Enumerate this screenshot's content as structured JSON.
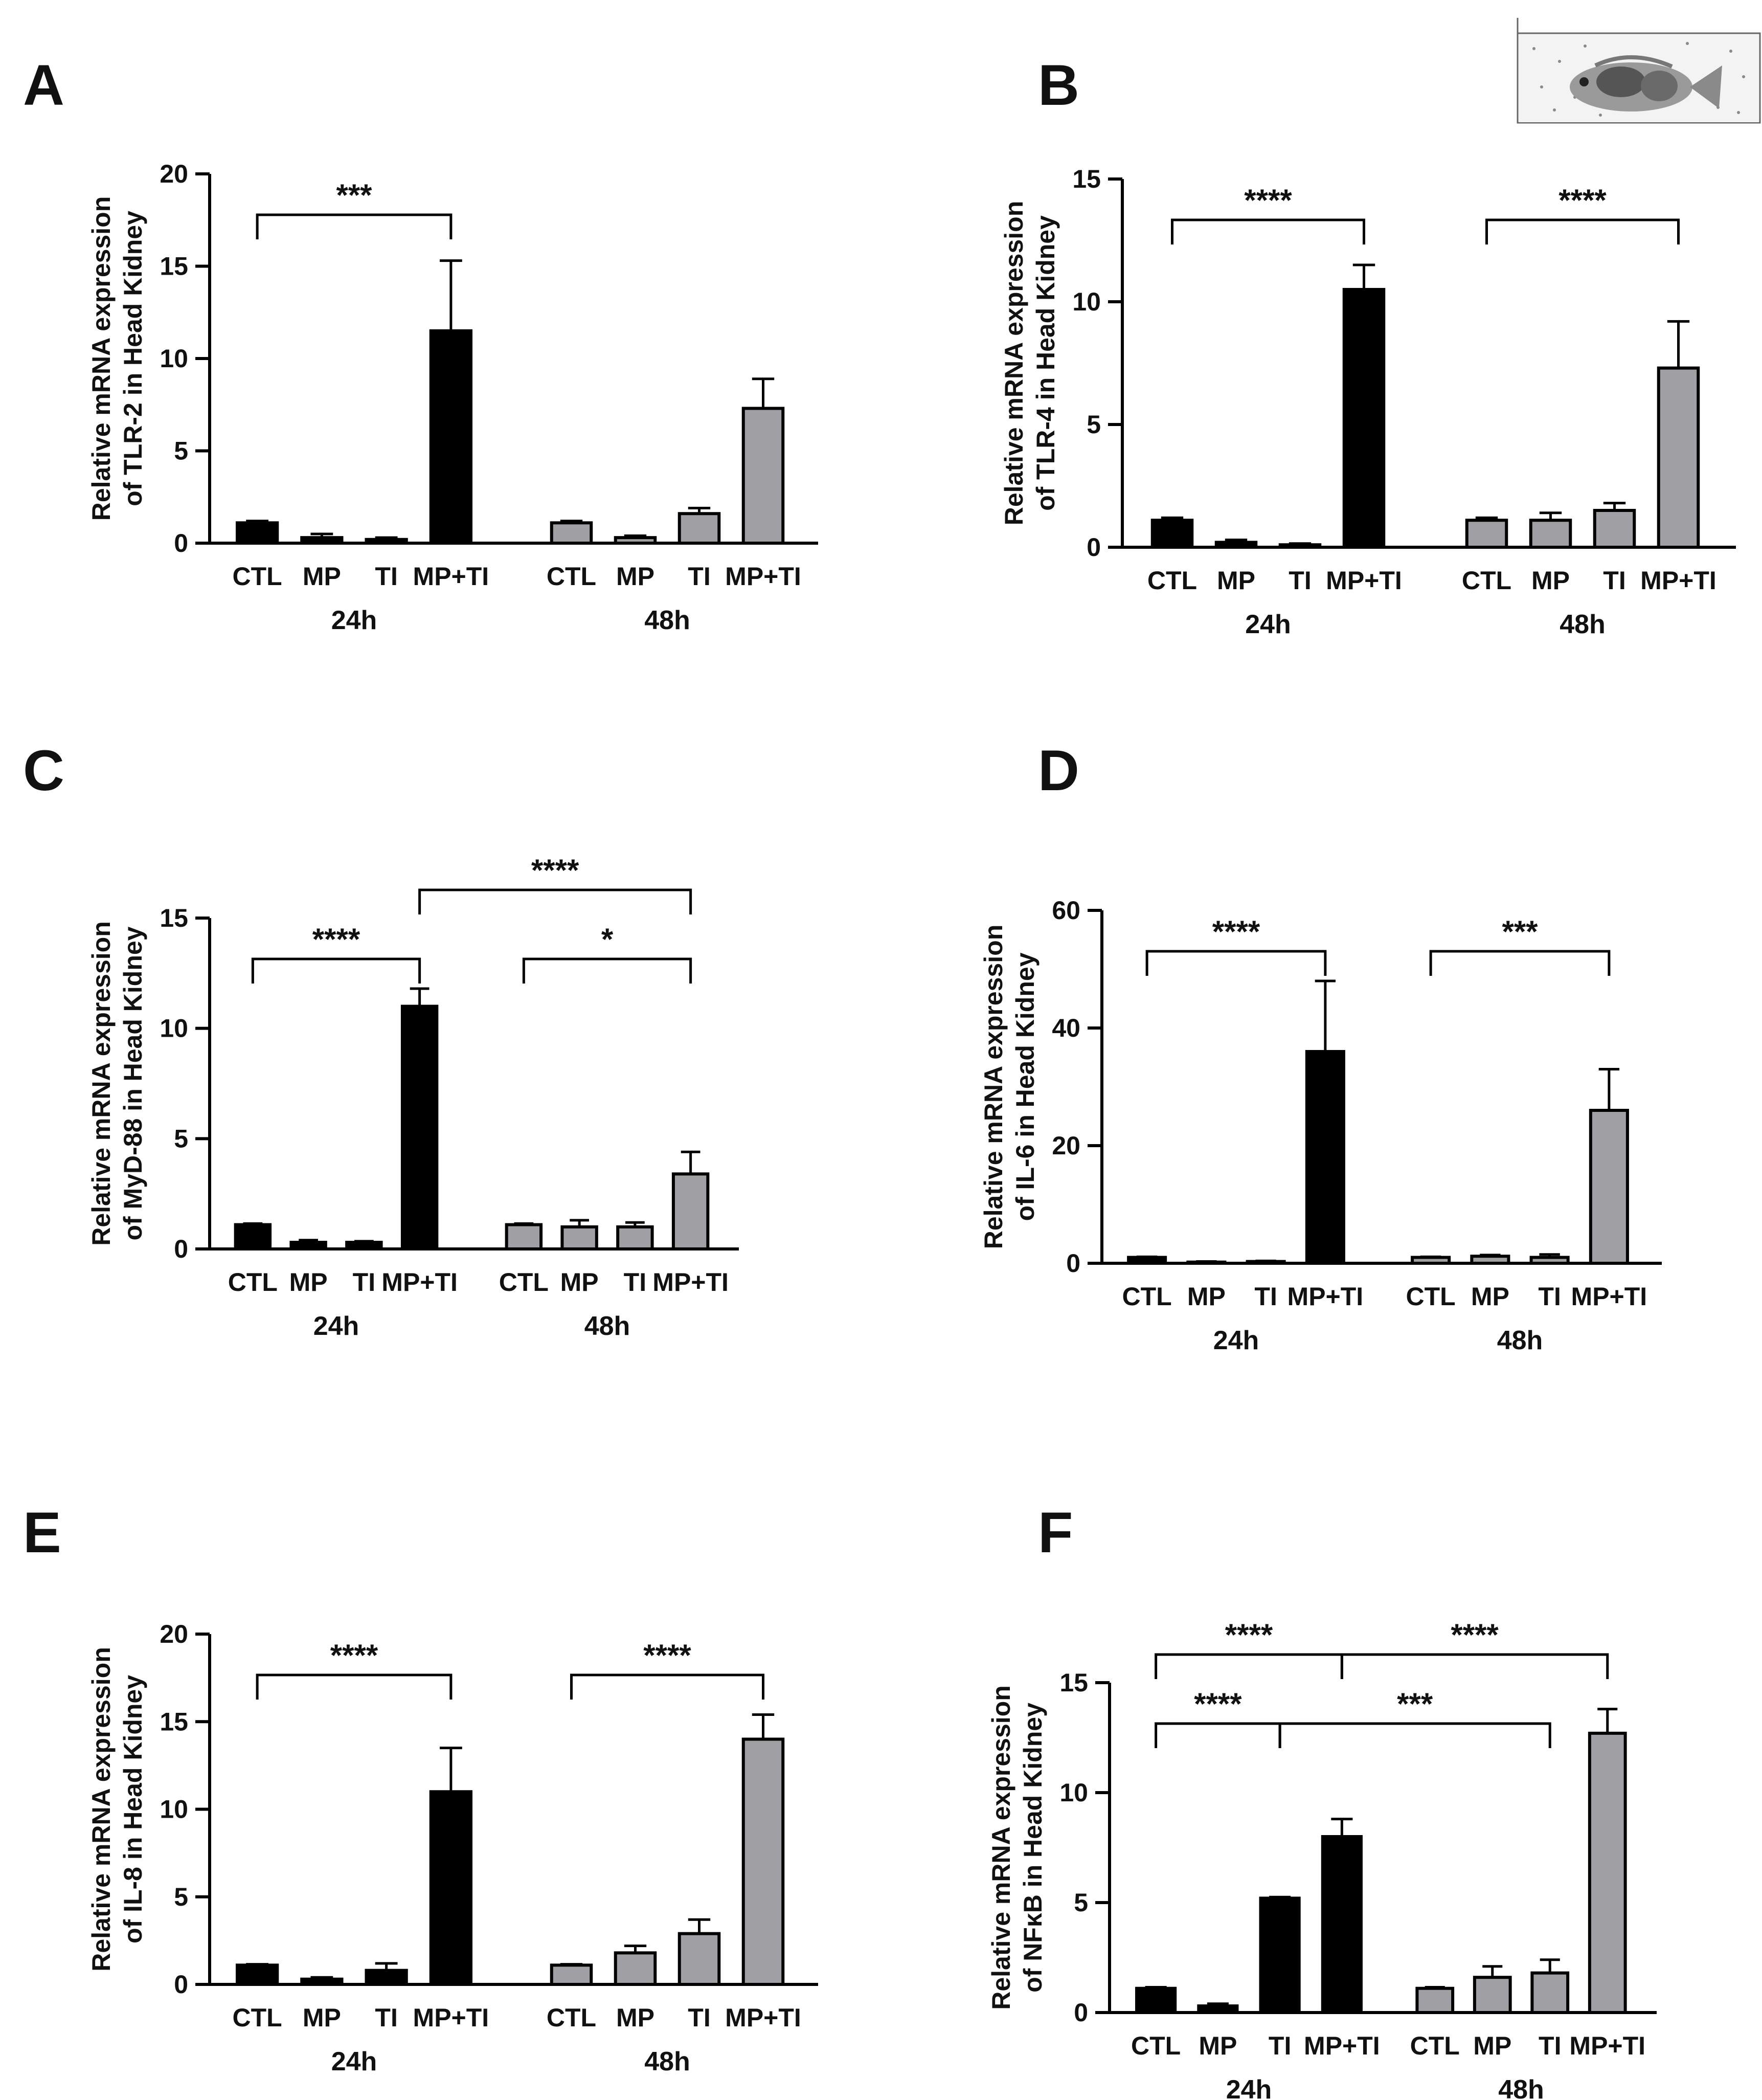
{
  "figure": {
    "palette": {
      "h24": "#000000",
      "h48": "#a0a0a4",
      "outline": "#000000"
    },
    "inset_icon": "fish-illustration-icon"
  },
  "chart_data": [
    {
      "panel": "A",
      "type": "bar",
      "ylabel_lines": [
        "Relative mRNA expression",
        "of TLR-2 in Head Kidney"
      ],
      "ylim": [
        0,
        20
      ],
      "yticks": [
        0,
        5,
        10,
        15,
        20
      ],
      "categories": [
        "CTL",
        "MP",
        "TI",
        "MP+TI"
      ],
      "groups": [
        "24h",
        "48h"
      ],
      "series": [
        {
          "name": "24h",
          "values": [
            1.1,
            0.3,
            0.2,
            11.5
          ],
          "errors": [
            0.1,
            0.2,
            0.1,
            3.8
          ]
        },
        {
          "name": "48h",
          "values": [
            1.1,
            0.3,
            1.6,
            7.3
          ],
          "errors": [
            0.1,
            0.1,
            0.3,
            1.6
          ]
        }
      ],
      "significance": [
        {
          "label": "***",
          "from": [
            0,
            0
          ],
          "to": [
            0,
            3
          ],
          "tier": 0
        }
      ]
    },
    {
      "panel": "B",
      "type": "bar",
      "ylabel_lines": [
        "Relative mRNA expression",
        "of TLR-4 in Head Kidney"
      ],
      "ylim": [
        0,
        15
      ],
      "yticks": [
        0,
        5,
        10,
        15
      ],
      "categories": [
        "CTL",
        "MP",
        "TI",
        "MP+TI"
      ],
      "groups": [
        "24h",
        "48h"
      ],
      "series": [
        {
          "name": "24h",
          "values": [
            1.1,
            0.2,
            0.1,
            10.5
          ],
          "errors": [
            0.1,
            0.1,
            0.05,
            1.0
          ]
        },
        {
          "name": "48h",
          "values": [
            1.1,
            1.1,
            1.5,
            7.3
          ],
          "errors": [
            0.1,
            0.3,
            0.3,
            1.9
          ]
        }
      ],
      "significance": [
        {
          "label": "****",
          "from": [
            0,
            0
          ],
          "to": [
            0,
            3
          ],
          "tier": 0
        },
        {
          "label": "****",
          "from": [
            1,
            0
          ],
          "to": [
            1,
            3
          ],
          "tier": 0
        }
      ]
    },
    {
      "panel": "C",
      "type": "bar",
      "ylabel_lines": [
        "Relative mRNA expression",
        "of MyD-88 in Head Kidney"
      ],
      "ylim": [
        0,
        15
      ],
      "yticks": [
        0,
        5,
        10,
        15
      ],
      "categories": [
        "CTL",
        "MP",
        "TI",
        "MP+TI"
      ],
      "groups": [
        "24h",
        "48h"
      ],
      "series": [
        {
          "name": "24h",
          "values": [
            1.1,
            0.3,
            0.3,
            11.0
          ],
          "errors": [
            0.05,
            0.1,
            0.05,
            0.8
          ]
        },
        {
          "name": "48h",
          "values": [
            1.1,
            1.0,
            1.0,
            3.4
          ],
          "errors": [
            0.05,
            0.3,
            0.2,
            1.0
          ]
        }
      ],
      "significance": [
        {
          "label": "****",
          "from": [
            0,
            0
          ],
          "to": [
            0,
            3
          ],
          "tier": 0
        },
        {
          "label": "*",
          "from": [
            1,
            0
          ],
          "to": [
            1,
            3
          ],
          "tier": 0
        },
        {
          "label": "****",
          "from": [
            0,
            3
          ],
          "to": [
            1,
            3
          ],
          "tier": 1
        }
      ]
    },
    {
      "panel": "D",
      "type": "bar",
      "ylabel_lines": [
        "Relative mRNA expression",
        "of IL-6 in Head Kidney"
      ],
      "ylim": [
        0,
        60
      ],
      "yticks": [
        0,
        20,
        40,
        60
      ],
      "categories": [
        "CTL",
        "MP",
        "TI",
        "MP+TI"
      ],
      "groups": [
        "24h",
        "48h"
      ],
      "series": [
        {
          "name": "24h",
          "values": [
            1.0,
            0.2,
            0.3,
            36.0
          ],
          "errors": [
            0.1,
            0.1,
            0.1,
            12.0
          ]
        },
        {
          "name": "48h",
          "values": [
            1.0,
            1.2,
            1.0,
            26.0
          ],
          "errors": [
            0.1,
            0.2,
            0.5,
            7.0
          ]
        }
      ],
      "significance": [
        {
          "label": "****",
          "from": [
            0,
            0
          ],
          "to": [
            0,
            3
          ],
          "tier": 0
        },
        {
          "label": "***",
          "from": [
            1,
            0
          ],
          "to": [
            1,
            3
          ],
          "tier": 0
        }
      ]
    },
    {
      "panel": "E",
      "type": "bar",
      "ylabel_lines": [
        "Relative mRNA expression",
        "of IL-8 in Head Kidney"
      ],
      "ylim": [
        0,
        20
      ],
      "yticks": [
        0,
        5,
        10,
        15,
        20
      ],
      "categories": [
        "CTL",
        "MP",
        "TI",
        "MP+TI"
      ],
      "groups": [
        "24h",
        "48h"
      ],
      "series": [
        {
          "name": "24h",
          "values": [
            1.1,
            0.3,
            0.8,
            11.0
          ],
          "errors": [
            0.05,
            0.1,
            0.4,
            2.5
          ]
        },
        {
          "name": "48h",
          "values": [
            1.1,
            1.8,
            2.9,
            14.0
          ],
          "errors": [
            0.05,
            0.4,
            0.8,
            1.4
          ]
        }
      ],
      "significance": [
        {
          "label": "****",
          "from": [
            0,
            0
          ],
          "to": [
            0,
            3
          ],
          "tier": 0
        },
        {
          "label": "****",
          "from": [
            1,
            0
          ],
          "to": [
            1,
            3
          ],
          "tier": 0
        }
      ]
    },
    {
      "panel": "F",
      "type": "bar",
      "ylabel_lines": [
        "Relative mRNA expression",
        "of NFκB in Head Kidney"
      ],
      "ylim": [
        0,
        15
      ],
      "yticks": [
        0,
        5,
        10,
        15
      ],
      "categories": [
        "CTL",
        "MP",
        "TI",
        "MP+TI"
      ],
      "groups": [
        "24h",
        "48h"
      ],
      "series": [
        {
          "name": "24h",
          "values": [
            1.1,
            0.3,
            5.2,
            8.0
          ],
          "errors": [
            0.05,
            0.1,
            0.05,
            0.8
          ]
        },
        {
          "name": "48h",
          "values": [
            1.1,
            1.6,
            1.8,
            12.7
          ],
          "errors": [
            0.05,
            0.5,
            0.6,
            1.1
          ]
        }
      ],
      "significance": [
        {
          "label": "****",
          "from": [
            0,
            0
          ],
          "to": [
            0,
            2
          ],
          "tier": 0
        },
        {
          "label": "***",
          "from": [
            0,
            2
          ],
          "to": [
            1,
            2
          ],
          "tier": 0
        },
        {
          "label": "****",
          "from": [
            0,
            0
          ],
          "to": [
            0,
            3
          ],
          "tier": 1
        },
        {
          "label": "****",
          "from": [
            0,
            3
          ],
          "to": [
            1,
            3
          ],
          "tier": 1
        }
      ]
    }
  ]
}
